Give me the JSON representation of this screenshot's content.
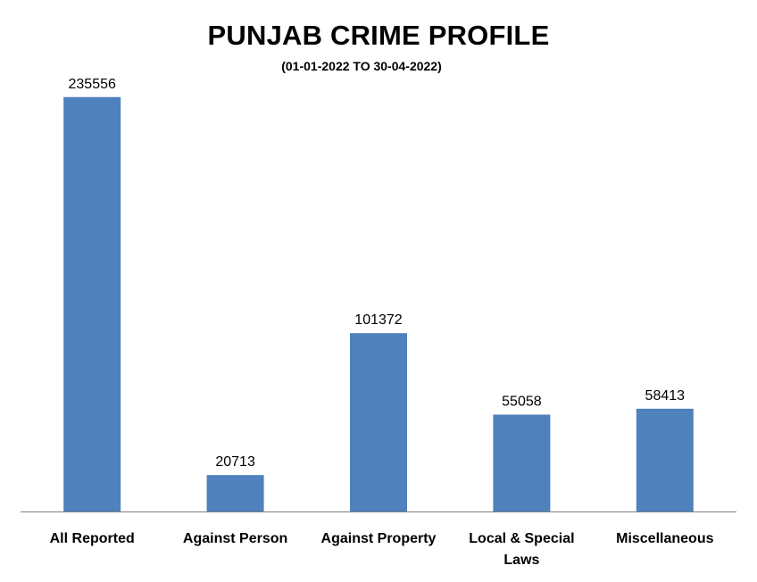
{
  "chart_data": {
    "type": "bar",
    "title": "PUNJAB CRIME PROFILE",
    "subtitle": "(01-01-2022 TO 30-04-2022)",
    "categories": [
      "All Reported",
      "Against Person",
      "Against Property",
      "Local & Special Laws",
      "Miscellaneous"
    ],
    "category_lines": [
      [
        "All Reported"
      ],
      [
        "Against Person"
      ],
      [
        "Against Property"
      ],
      [
        "Local & Special",
        "Laws"
      ],
      [
        "Miscellaneous"
      ]
    ],
    "values": [
      235556,
      20713,
      101372,
      55058,
      58413
    ],
    "data_labels": [
      "235556",
      "20713",
      "101372",
      "55058",
      "58413"
    ],
    "xlabel": "",
    "ylabel": "",
    "ylim": [
      0,
      240000
    ],
    "grid": false,
    "legend": "none",
    "bar_color": "#4F81BD",
    "axis_color": "#808080",
    "text_color": "#000000"
  }
}
